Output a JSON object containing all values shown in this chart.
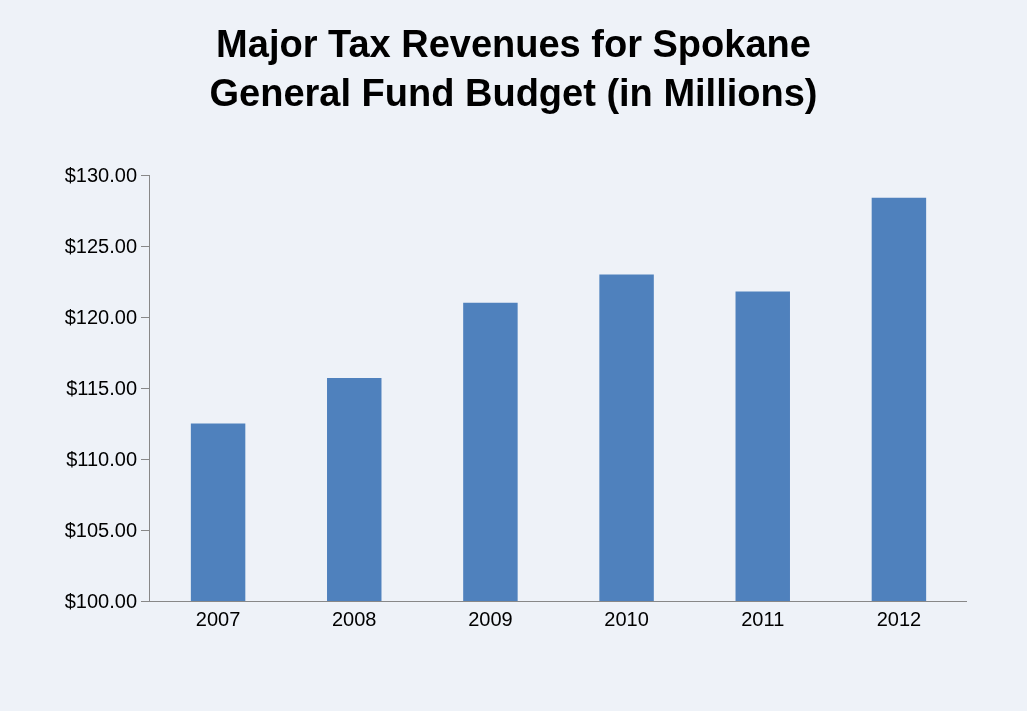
{
  "chart_data": {
    "type": "bar",
    "title": "Major Tax Revenues for Spokane\nGeneral Fund Budget (in Millions)",
    "categories": [
      "2007",
      "2008",
      "2009",
      "2010",
      "2011",
      "2012"
    ],
    "values": [
      112.5,
      115.7,
      121.0,
      123.0,
      121.8,
      128.4
    ],
    "color": "#4f81bd",
    "ylim": [
      100,
      130
    ],
    "yticks": [
      {
        "value": 100,
        "label": "$100.00"
      },
      {
        "value": 105,
        "label": "$105.00"
      },
      {
        "value": 110,
        "label": "$110.00"
      },
      {
        "value": 115,
        "label": "$115.00"
      },
      {
        "value": 120,
        "label": "$120.00"
      },
      {
        "value": 125,
        "label": "$125.00"
      },
      {
        "value": 130,
        "label": "$130.00"
      }
    ],
    "grid": false
  }
}
